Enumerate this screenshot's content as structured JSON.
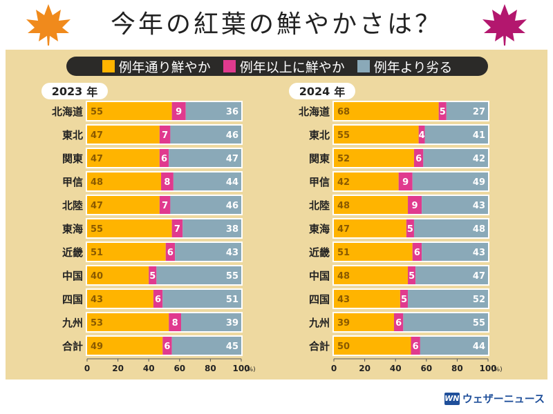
{
  "title": "今年の紅葉の鮮やかさは？",
  "colors": {
    "orange": "#ffb400",
    "pink": "#e03a8e",
    "blue": "#8aa9b8",
    "panel": "#eed9a0"
  },
  "legend": [
    {
      "label": "例年通り鮮やか",
      "color": "#ffb400"
    },
    {
      "label": "例年以上に鮮やか",
      "color": "#e03a8e"
    },
    {
      "label": "例年より劣る",
      "color": "#8aa9b8"
    }
  ],
  "watermark": {
    "mark": "WN",
    "text": "ウェザーニュース"
  },
  "chart_data": [
    {
      "type": "bar",
      "stacked": true,
      "orientation": "horizontal",
      "year_num": "2023",
      "year_suffix": "年",
      "categories": [
        "北海道",
        "東北",
        "関東",
        "甲信",
        "北陸",
        "東海",
        "近畿",
        "中国",
        "四国",
        "九州",
        "合計"
      ],
      "series": [
        {
          "name": "例年通り鮮やか",
          "color": "#ffb400",
          "values": [
            55,
            47,
            47,
            48,
            47,
            55,
            51,
            40,
            43,
            53,
            49
          ]
        },
        {
          "name": "例年以上に鮮やか",
          "color": "#e03a8e",
          "values": [
            9,
            7,
            6,
            8,
            7,
            7,
            6,
            5,
            6,
            8,
            6
          ]
        },
        {
          "name": "例年より劣る",
          "color": "#8aa9b8",
          "values": [
            36,
            46,
            47,
            44,
            46,
            38,
            43,
            55,
            51,
            39,
            45
          ]
        }
      ],
      "xlim": [
        0,
        100
      ],
      "xticks": [
        "0",
        "20",
        "40",
        "60",
        "80",
        "100"
      ],
      "unit": "(%)"
    },
    {
      "type": "bar",
      "stacked": true,
      "orientation": "horizontal",
      "year_num": "2024",
      "year_suffix": "年",
      "categories": [
        "北海道",
        "東北",
        "関東",
        "甲信",
        "北陸",
        "東海",
        "近畿",
        "中国",
        "四国",
        "九州",
        "合計"
      ],
      "series": [
        {
          "name": "例年通り鮮やか",
          "color": "#ffb400",
          "values": [
            68,
            55,
            52,
            42,
            48,
            47,
            51,
            48,
            43,
            39,
            50
          ]
        },
        {
          "name": "例年以上に鮮やか",
          "color": "#e03a8e",
          "values": [
            5,
            4,
            6,
            9,
            9,
            5,
            6,
            5,
            5,
            6,
            6
          ]
        },
        {
          "name": "例年より劣る",
          "color": "#8aa9b8",
          "values": [
            27,
            41,
            42,
            49,
            43,
            48,
            43,
            47,
            52,
            55,
            44
          ]
        }
      ],
      "xlim": [
        0,
        100
      ],
      "xticks": [
        "0",
        "20",
        "40",
        "60",
        "80",
        "100"
      ],
      "unit": "(%)"
    }
  ]
}
